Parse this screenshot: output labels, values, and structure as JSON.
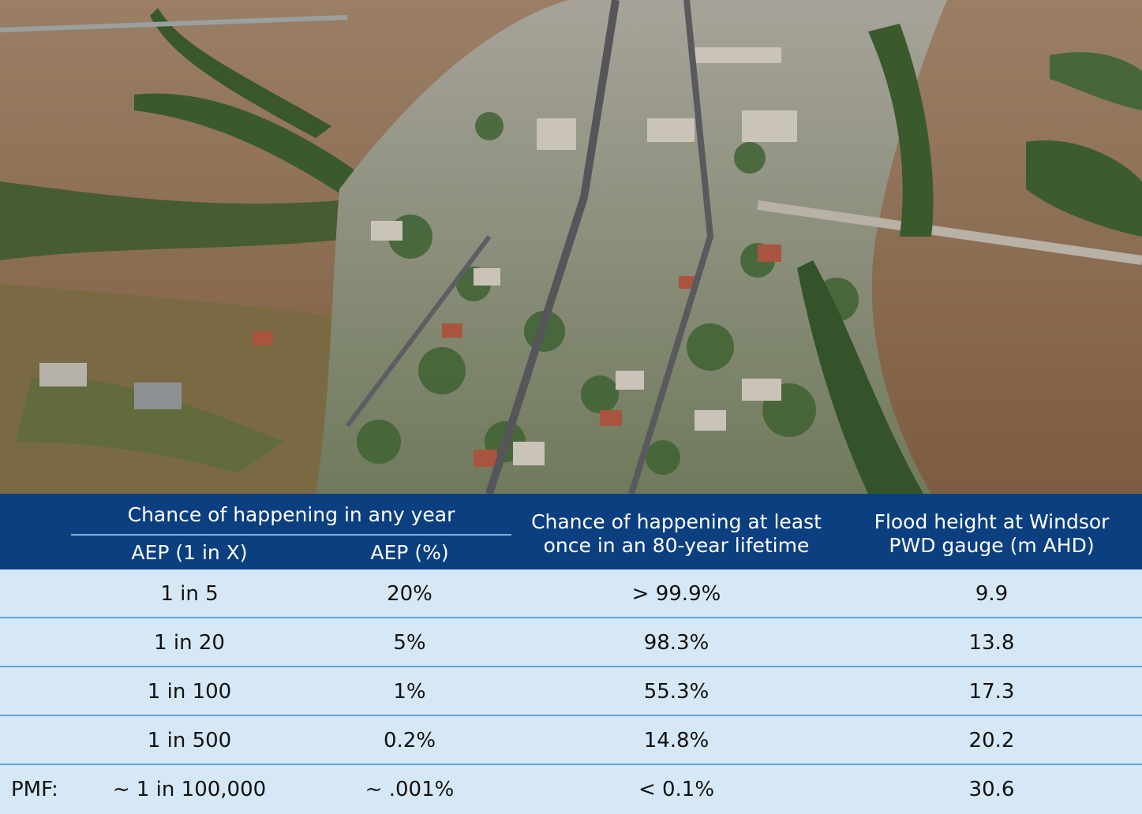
{
  "photo": {
    "description_icon": "aerial-flood-photo",
    "colors": {
      "floodwater": "#8a6a4e",
      "vegetation": "#3f5e32",
      "roofs": "#b9b3a8",
      "sky_haze": "#a99a88"
    }
  },
  "table": {
    "header": {
      "group_title": "Chance of happening in any year",
      "col1": "AEP (1 in X)",
      "col2": "AEP (%)",
      "col3_line1": "Chance of happening at least",
      "col3_line2": "once in an 80-year lifetime",
      "col4_line1": "Flood height at Windsor",
      "col4_line2": "PWD gauge (m AHD)"
    },
    "rows": [
      {
        "lead": "",
        "aep_1_in_x": "1 in 5",
        "aep_pct": "20%",
        "lifetime": "> 99.9%",
        "height": "9.9"
      },
      {
        "lead": "",
        "aep_1_in_x": "1 in 20",
        "aep_pct": "5%",
        "lifetime": "98.3%",
        "height": "13.8"
      },
      {
        "lead": "",
        "aep_1_in_x": "1 in 100",
        "aep_pct": "1%",
        "lifetime": "55.3%",
        "height": "17.3"
      },
      {
        "lead": "",
        "aep_1_in_x": "1 in 500",
        "aep_pct": "0.2%",
        "lifetime": "14.8%",
        "height": "20.2"
      },
      {
        "lead": "PMF:",
        "aep_1_in_x": "~ 1 in 100,000",
        "aep_pct": "~ .001%",
        "lifetime": "< 0.1%",
        "height": "30.6"
      }
    ],
    "colors": {
      "header_bg": "#0b3f80",
      "header_text": "#ffffff",
      "row_bg": "#d6e8f5",
      "divider": "#5fa3db"
    }
  }
}
